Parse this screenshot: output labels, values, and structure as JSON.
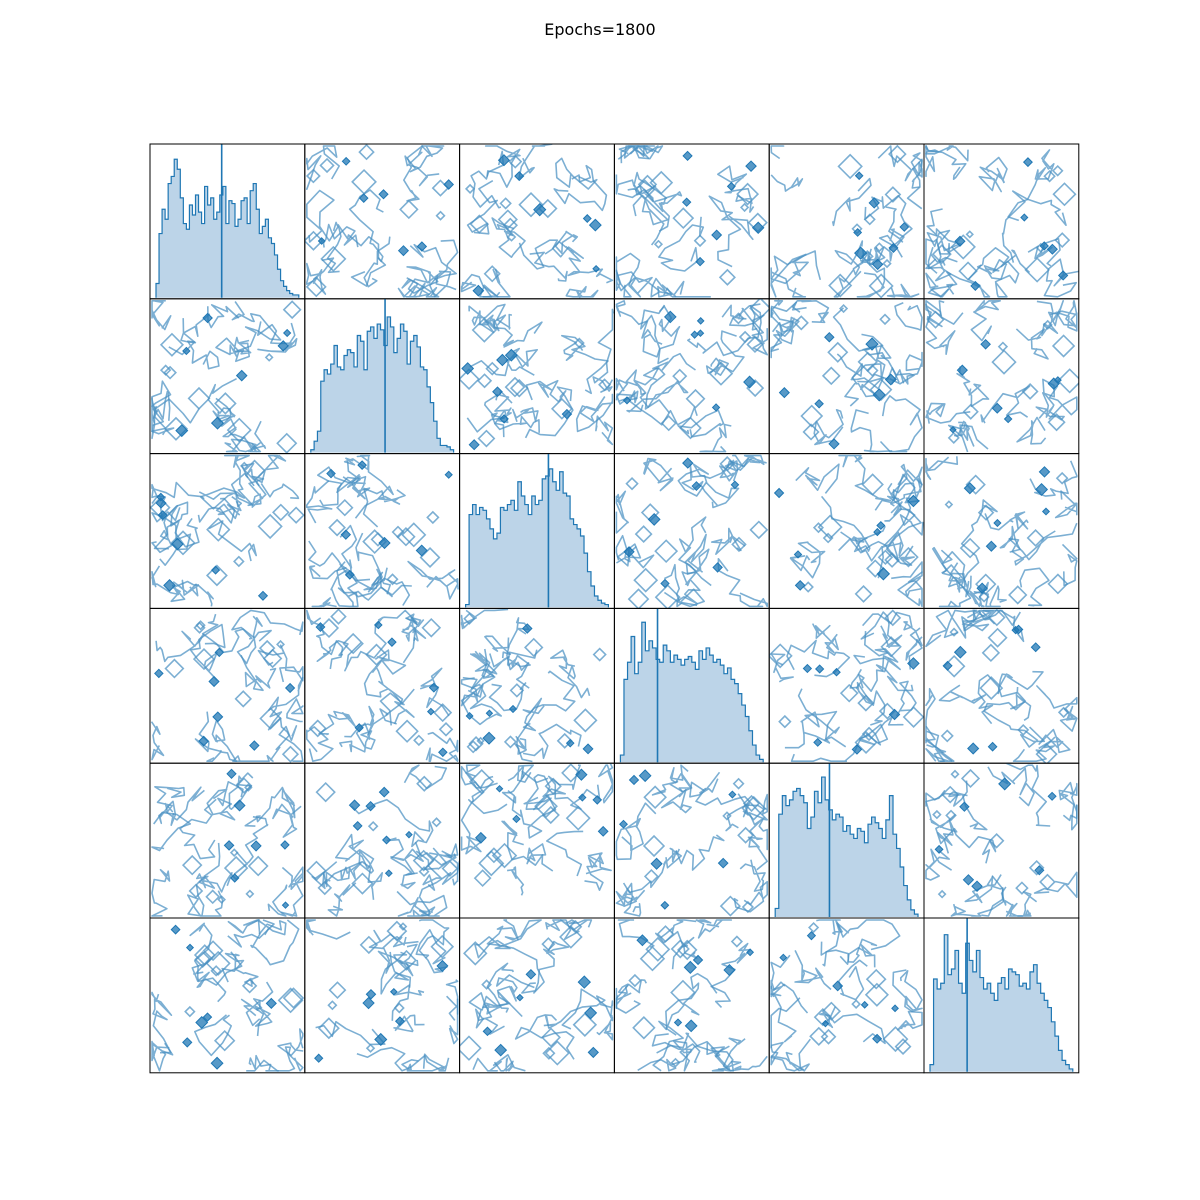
{
  "chart_data": {
    "type": "pairplot",
    "title": "Epochs=1800",
    "dimensions": 6,
    "diagonal": "histogram",
    "off_diagonal": "contour",
    "axes_ticks": false,
    "grid": false,
    "colors": {
      "series": "#1f77b4",
      "hist_fill": "#bcd4e8",
      "contour": "#4a90c2",
      "frame": "#000000"
    },
    "diagonal_histograms": [
      {
        "index": 0,
        "marker_position": 0.46,
        "relative_heights": [
          0.1,
          0.45,
          0.62,
          0.55,
          0.8,
          0.85,
          0.97,
          0.9,
          0.7,
          0.52,
          0.48,
          0.65,
          0.58,
          0.72,
          0.6,
          0.52,
          0.78,
          0.65,
          0.7,
          0.55,
          0.6,
          0.72,
          0.78,
          0.52,
          0.68,
          0.66,
          0.5,
          0.55,
          0.68,
          0.7,
          0.52,
          0.75,
          0.8,
          0.62,
          0.45,
          0.5,
          0.55,
          0.42,
          0.38,
          0.3,
          0.2,
          0.12,
          0.08,
          0.05,
          0.03,
          0.02,
          0.02
        ]
      },
      {
        "index": 1,
        "marker_position": 0.52,
        "relative_heights": [
          0.02,
          0.08,
          0.15,
          0.5,
          0.58,
          0.55,
          0.62,
          0.75,
          0.6,
          0.58,
          0.68,
          0.72,
          0.7,
          0.6,
          0.82,
          0.78,
          0.58,
          0.85,
          0.88,
          0.8,
          0.9,
          0.86,
          0.75,
          0.95,
          0.88,
          0.7,
          0.8,
          0.9,
          0.85,
          0.62,
          0.78,
          0.82,
          0.74,
          0.6,
          0.58,
          0.46,
          0.35,
          0.22,
          0.1,
          0.05,
          0.05,
          0.04,
          0.02
        ]
      },
      {
        "index": 2,
        "marker_position": 0.58,
        "relative_heights": [
          0.02,
          0.65,
          0.72,
          0.65,
          0.7,
          0.68,
          0.62,
          0.55,
          0.48,
          0.52,
          0.7,
          0.68,
          0.72,
          0.75,
          0.68,
          0.88,
          0.78,
          0.72,
          0.65,
          0.78,
          0.72,
          0.75,
          0.9,
          0.92,
          0.97,
          0.88,
          0.82,
          0.95,
          0.8,
          0.78,
          0.62,
          0.58,
          0.55,
          0.5,
          0.38,
          0.25,
          0.15,
          0.08,
          0.05,
          0.03,
          0.02
        ]
      },
      {
        "index": 3,
        "marker_position": 0.26,
        "relative_heights": [
          0.05,
          0.58,
          0.7,
          0.88,
          0.62,
          0.7,
          0.98,
          0.78,
          0.85,
          0.8,
          0.72,
          0.7,
          0.82,
          0.78,
          0.7,
          0.75,
          0.72,
          0.68,
          0.72,
          0.74,
          0.7,
          0.65,
          0.78,
          0.72,
          0.8,
          0.75,
          0.7,
          0.72,
          0.68,
          0.62,
          0.66,
          0.58,
          0.55,
          0.48,
          0.4,
          0.32,
          0.22,
          0.12,
          0.05,
          0.02
        ]
      },
      {
        "index": 4,
        "marker_position": 0.38,
        "relative_heights": [
          0.06,
          0.72,
          0.85,
          0.78,
          0.82,
          0.88,
          0.9,
          0.85,
          0.8,
          0.62,
          0.7,
          0.88,
          0.8,
          0.98,
          0.82,
          0.75,
          0.68,
          0.72,
          0.7,
          0.6,
          0.64,
          0.58,
          0.55,
          0.62,
          0.6,
          0.52,
          0.65,
          0.7,
          0.66,
          0.62,
          0.55,
          0.68,
          0.85,
          0.58,
          0.48,
          0.35,
          0.22,
          0.12,
          0.05,
          0.02
        ]
      },
      {
        "index": 5,
        "marker_position": 0.26,
        "relative_heights": [
          0.05,
          0.65,
          0.58,
          0.62,
          0.96,
          0.68,
          0.72,
          0.85,
          0.62,
          0.55,
          0.9,
          0.78,
          0.7,
          0.85,
          0.66,
          0.58,
          0.62,
          0.55,
          0.5,
          0.62,
          0.66,
          0.58,
          0.72,
          0.7,
          0.68,
          0.6,
          0.62,
          0.58,
          0.7,
          0.75,
          0.62,
          0.55,
          0.5,
          0.45,
          0.35,
          0.25,
          0.15,
          0.08,
          0.05,
          0.02
        ]
      }
    ]
  }
}
